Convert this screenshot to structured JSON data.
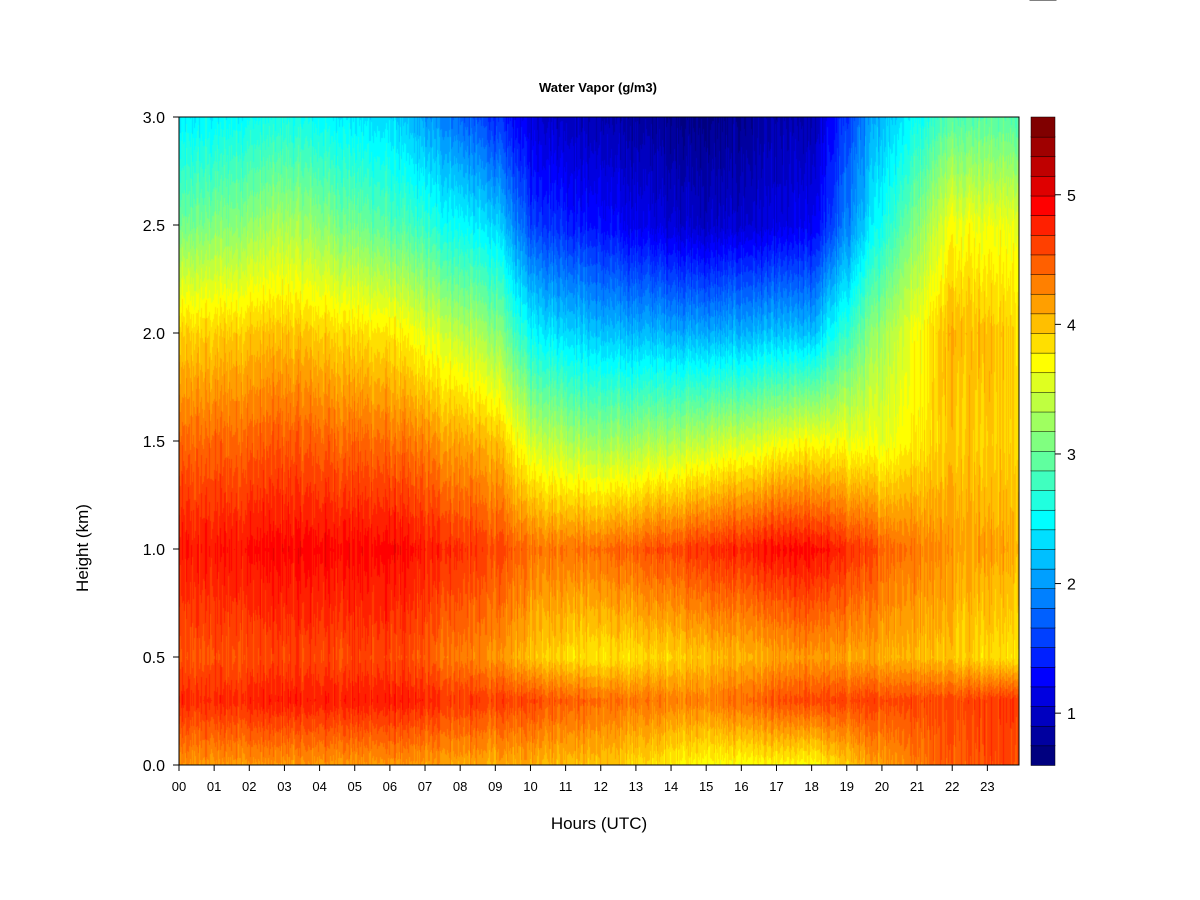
{
  "chart_data": {
    "type": "heatmap",
    "title": "Water Vapor (g/m3)",
    "xlabel": "Hours (UTC)",
    "ylabel": "Height (km)",
    "x_ticks": [
      "00",
      "01",
      "02",
      "03",
      "04",
      "05",
      "06",
      "07",
      "08",
      "09",
      "10",
      "11",
      "12",
      "13",
      "14",
      "15",
      "16",
      "17",
      "18",
      "19",
      "20",
      "21",
      "22",
      "23"
    ],
    "x_range": [
      0,
      23.9
    ],
    "y_ticks": [
      "0.0",
      "0.5",
      "1.0",
      "1.5",
      "2.0",
      "2.5",
      "3.0"
    ],
    "y_range": [
      0,
      3.0
    ],
    "colorbar": {
      "range": [
        0.6,
        5.6
      ],
      "ticks": [
        "1",
        "2",
        "3",
        "4",
        "5"
      ],
      "levels": 25,
      "colors": [
        "#00007F",
        "#00009F",
        "#0000C0",
        "#0000E0",
        "#0000FF",
        "#0020FF",
        "#0040FF",
        "#0060FF",
        "#0080FF",
        "#009FFF",
        "#00BFFF",
        "#00DFFF",
        "#00FFFF",
        "#20FFDF",
        "#40FFBF",
        "#60FF9F",
        "#80FF80",
        "#9FFF60",
        "#BFFF40",
        "#DFFF20",
        "#FFFF00",
        "#FFDF00",
        "#FFBF00",
        "#FF9F00",
        "#FF8000",
        "#FF6000",
        "#FF4000",
        "#FF2000",
        "#FF0000",
        "#DF0000",
        "#BF0000",
        "#9F0000",
        "#800000"
      ]
    },
    "profiles_by_hour": {
      "heights_km": [
        0.0,
        0.3,
        0.5,
        1.0,
        1.5,
        2.0,
        2.5,
        3.0
      ],
      "hour_0": [
        4.2,
        4.7,
        4.5,
        4.8,
        4.4,
        3.9,
        3.0,
        2.4
      ],
      "hour_3": [
        4.2,
        4.8,
        4.6,
        4.9,
        4.5,
        4.0,
        3.3,
        2.6
      ],
      "hour_6": [
        4.2,
        4.8,
        4.6,
        4.9,
        4.4,
        3.8,
        2.9,
        2.3
      ],
      "hour_9": [
        4.1,
        4.6,
        4.2,
        4.6,
        4.0,
        3.2,
        2.3,
        1.5
      ],
      "hour_10": [
        4.1,
        4.6,
        4.0,
        4.4,
        3.5,
        2.5,
        1.6,
        1.1
      ],
      "hour_12": [
        4.0,
        4.4,
        3.8,
        4.4,
        3.2,
        2.2,
        1.3,
        0.9
      ],
      "hour_15": [
        3.7,
        4.3,
        4.0,
        4.7,
        3.4,
        2.1,
        1.0,
        0.7
      ],
      "hour_18": [
        3.7,
        4.6,
        4.2,
        4.9,
        3.7,
        2.2,
        1.2,
        0.9
      ],
      "hour_20": [
        4.2,
        4.6,
        4.1,
        4.5,
        3.6,
        3.3,
        2.6,
        2.2
      ],
      "hour_22": [
        4.5,
        4.6,
        4.0,
        4.2,
        4.0,
        4.1,
        3.7,
        2.9
      ],
      "hour_24": [
        4.6,
        4.7,
        3.8,
        4.1,
        3.9,
        3.9,
        3.6,
        2.9
      ]
    }
  }
}
